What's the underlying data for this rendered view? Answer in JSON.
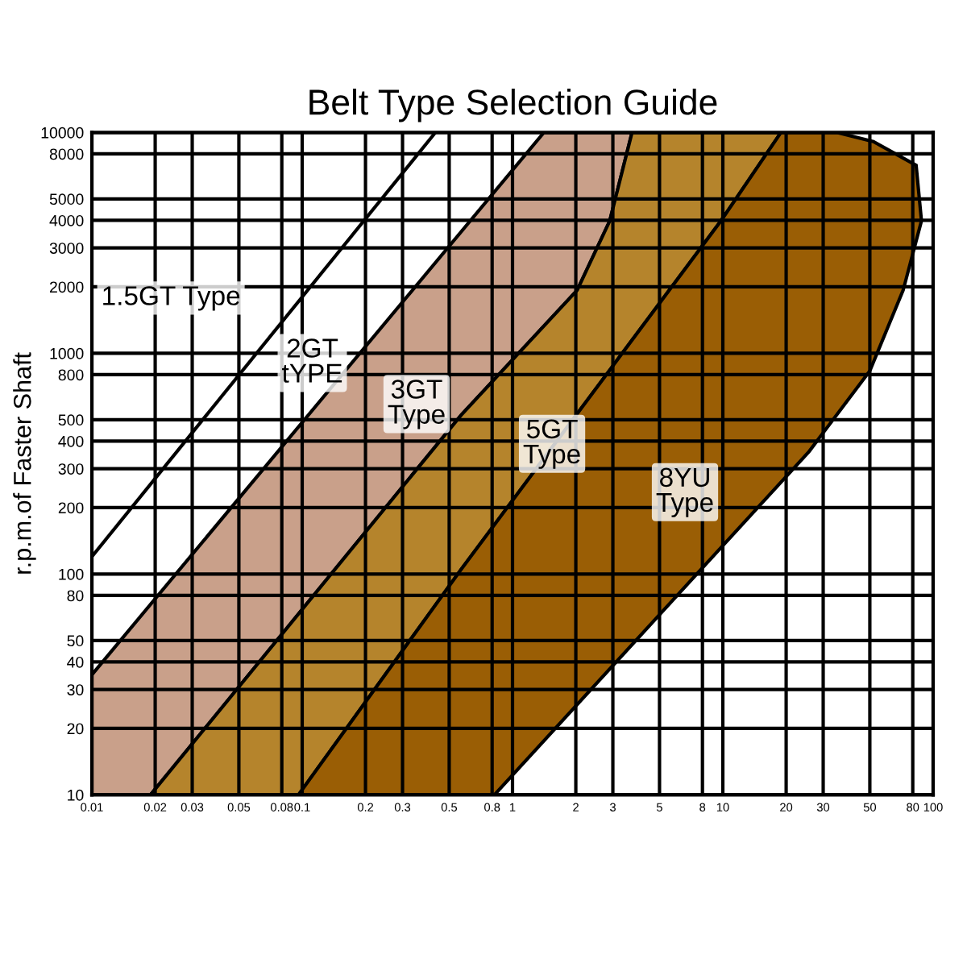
{
  "chart_data": {
    "type": "area",
    "title": "Belt Type Selection Guide",
    "ylabel": "r.p.m.of Faster Shaft",
    "log": "xy",
    "grid": true,
    "xlim": [
      0.01,
      100
    ],
    "ylim": [
      10,
      10000
    ],
    "xticks": [
      0.01,
      0.02,
      0.03,
      0.05,
      0.08,
      0.1,
      0.2,
      0.3,
      0.5,
      0.8,
      1,
      2,
      3,
      5,
      8,
      10,
      20,
      30,
      50,
      80,
      100
    ],
    "yticks": [
      10,
      20,
      30,
      40,
      50,
      80,
      100,
      200,
      300,
      400,
      500,
      800,
      1000,
      2000,
      3000,
      4000,
      5000,
      8000,
      10000
    ],
    "series": [
      {
        "color": "#c9a08a",
        "x": [
          0.01,
          1.41,
          3.7,
          2.9,
          2.03,
          0.57,
          0.019,
          0.01
        ],
        "values": [
          35,
          10000,
          10000,
          3980,
          1930,
          525,
          10,
          10
        ]
      },
      {
        "color": "#b5842c",
        "x": [
          0.019,
          0.57,
          2.03,
          2.9,
          3.7,
          18.9,
          9.8,
          0.57,
          0.096
        ],
        "values": [
          10,
          525,
          1930,
          3980,
          10000,
          10000,
          3980,
          105,
          10
        ]
      },
      {
        "color": "#9a5e05",
        "x": [
          0.096,
          0.57,
          9.8,
          18.9,
          35,
          52,
          83,
          88,
          72,
          50,
          25.7,
          0.82
        ],
        "values": [
          10,
          105,
          3980,
          10000,
          10000,
          9100,
          7100,
          3980,
          1930,
          832,
          359,
          10
        ]
      },
      {
        "type": "line",
        "color": "#000000",
        "x": [
          0.01,
          0.43
        ],
        "values": [
          120,
          10000
        ]
      }
    ],
    "annotations": [
      "1.5GT Type",
      "2GT\ntYPE",
      "3GT\nType",
      "5GT\nType",
      "8YU\nType"
    ]
  }
}
